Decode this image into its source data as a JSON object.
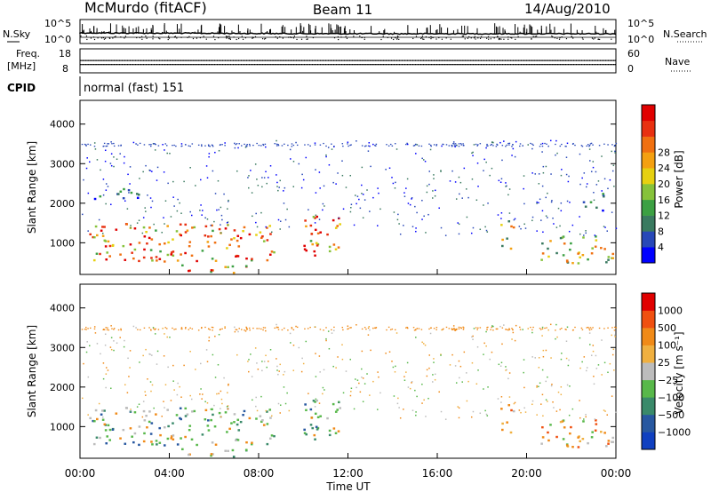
{
  "header": {
    "station": "McMurdo (fitACF)",
    "beam": "Beam 11",
    "date": "14/Aug/2010"
  },
  "side_labels": {
    "nsky": "N.Sky",
    "nsearch": "N.Search",
    "freq": "Freq.",
    "freq_unit": "[MHz]",
    "nave": "Nave",
    "cpid": "CPID"
  },
  "cpid_text": "normal (fast) 151",
  "chart_data": [
    {
      "type": "line",
      "panel": "noise",
      "ylim_labels": [
        "10^0",
        "10^5"
      ],
      "right_ylim_labels": [
        "10^0",
        "10^5"
      ],
      "series": [
        {
          "label": "N.Sky",
          "style": "solid"
        },
        {
          "label": "N.Search",
          "style": "dotted"
        }
      ]
    },
    {
      "type": "scatter",
      "panel": "frequency",
      "y_ticks": [
        "8",
        "18"
      ],
      "right_y_ticks": [
        "0",
        "60"
      ],
      "series": [
        {
          "label": "Freq.",
          "approx_value_mhz": 11.5
        },
        {
          "label": "Nave",
          "approx_value": 30
        }
      ]
    },
    {
      "type": "heatmap",
      "panel": "power",
      "xlabel": "",
      "ylabel": "Slant Range [km]",
      "ylim": [
        200,
        4600
      ],
      "y_ticks": [
        1000,
        2000,
        3000,
        4000
      ],
      "xlim_hours": [
        0,
        24
      ],
      "colorbar": {
        "label": "Power [dB]",
        "ticks": [
          4,
          8,
          12,
          16,
          20,
          24,
          28
        ],
        "colors": [
          "#0000ff",
          "#2848b8",
          "#3a7a60",
          "#3ca043",
          "#86c23a",
          "#e6d010",
          "#f4a010",
          "#f07010",
          "#e83010",
          "#e00000"
        ]
      },
      "regions": [
        {
          "start_h": 0.4,
          "end_h": 8.8,
          "range_km": [
            550,
            1500
          ],
          "level": "high"
        },
        {
          "start_h": 9.8,
          "end_h": 11.8,
          "range_km": [
            700,
            1700
          ],
          "level": "high"
        },
        {
          "start_h": 4.5,
          "end_h": 7.5,
          "range_km": [
            250,
            500
          ],
          "level": "high"
        },
        {
          "start_h": 18.8,
          "end_h": 19.4,
          "range_km": [
            700,
            1600
          ],
          "level": "mid"
        },
        {
          "start_h": 20.6,
          "end_h": 24.0,
          "range_km": [
            500,
            1200
          ],
          "level": "mid"
        },
        {
          "start_h": 0.5,
          "end_h": 3.0,
          "range_km": [
            2100,
            2400
          ],
          "level": "low"
        },
        {
          "start_h": 22.5,
          "end_h": 23.5,
          "range_km": [
            1800,
            2300
          ],
          "level": "low"
        }
      ]
    },
    {
      "type": "heatmap",
      "panel": "velocity",
      "xlabel": "Time UT",
      "ylabel": "Slant Range [km]",
      "ylim": [
        200,
        4600
      ],
      "y_ticks": [
        1000,
        2000,
        3000,
        4000
      ],
      "x_ticks": [
        "00:00",
        "04:00",
        "08:00",
        "12:00",
        "16:00",
        "20:00",
        "00:00"
      ],
      "colorbar": {
        "label": "Velocity [m s⁻¹]",
        "ticks": [
          "1000",
          "500",
          "100",
          "25",
          "−25",
          "−100",
          "−500",
          "−1000"
        ],
        "colors": [
          "#1040c0",
          "#2858a0",
          "#3a8a6a",
          "#58b84a",
          "#bcbcbc",
          "#f0b040",
          "#f08a18",
          "#f05010",
          "#e00000"
        ]
      }
    }
  ]
}
